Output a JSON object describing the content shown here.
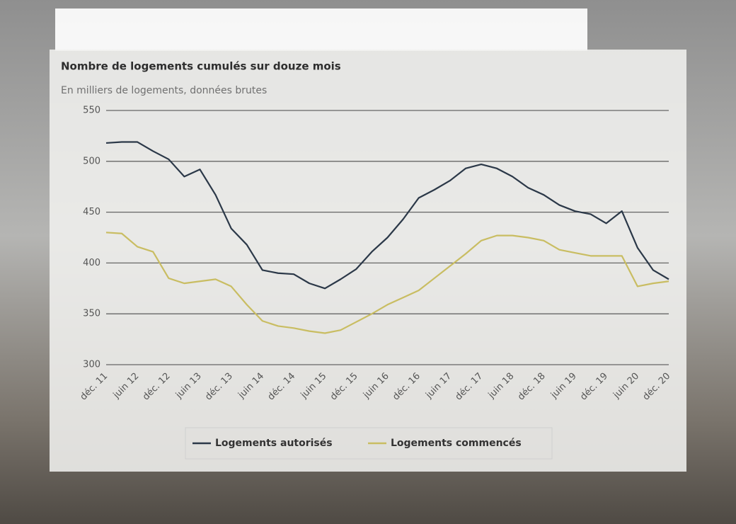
{
  "chart_data": {
    "type": "line",
    "title": "Nombre de logements cumulés sur douze mois",
    "subtitle": "En milliers de logements, données brutes",
    "categories": [
      "déc. 11",
      null,
      "juin 12",
      null,
      "déc. 12",
      null,
      "juin 13",
      null,
      "déc. 13",
      null,
      "juin 14",
      null,
      "déc. 14",
      null,
      "juin 15",
      null,
      "déc. 15",
      null,
      "juin 16",
      null,
      "déc. 16",
      null,
      "juin 17",
      null,
      "déc. 17",
      null,
      "juin 18",
      null,
      "déc. 18",
      null,
      "juin 19",
      null,
      "déc. 19",
      null,
      "juin 20",
      null,
      "déc. 20"
    ],
    "series": [
      {
        "name": "Logements autorisés",
        "color": "#2b3848",
        "values": [
          518,
          519,
          519,
          510,
          502,
          485,
          492,
          467,
          434,
          418,
          393,
          390,
          389,
          380,
          375,
          384,
          394,
          411,
          425,
          443,
          464,
          472,
          481,
          493,
          497,
          493,
          485,
          474,
          467,
          457,
          451,
          448,
          439,
          451,
          415,
          393,
          384
        ]
      },
      {
        "name": "Logements commencés",
        "color": "#c9bd62",
        "values": [
          430,
          429,
          416,
          411,
          385,
          380,
          382,
          384,
          377,
          359,
          343,
          338,
          336,
          333,
          331,
          334,
          342,
          350,
          359,
          366,
          373,
          385,
          397,
          409,
          422,
          427,
          427,
          425,
          422,
          413,
          410,
          407,
          407,
          407,
          377,
          380,
          382
        ]
      }
    ],
    "ylim": [
      300,
      550
    ],
    "yticks": [
      300,
      350,
      400,
      450,
      500,
      550
    ],
    "grid": true,
    "legend": "bottom"
  }
}
